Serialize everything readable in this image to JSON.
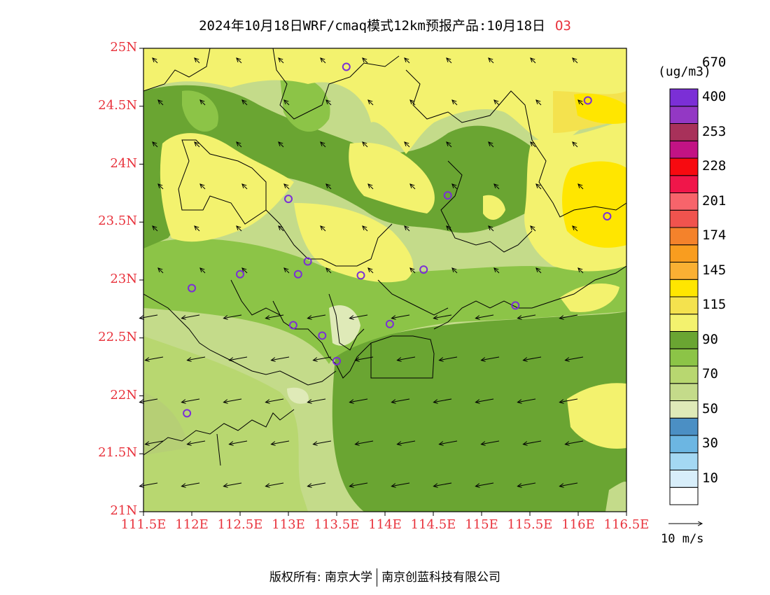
{
  "header": {
    "title": "2024年10月18日WRF/cmaq模式12km预报产品:10月18日",
    "species": "O3"
  },
  "axes": {
    "lat_labels": [
      "25N",
      "24.5N",
      "24N",
      "23.5N",
      "23N",
      "22.5N",
      "22N",
      "21.5N",
      "21N"
    ],
    "lon_labels": [
      "111.5E",
      "112E",
      "112.5E",
      "113E",
      "113.5E",
      "114E",
      "114.5E",
      "115E",
      "115.5E",
      "116E",
      "116.5E"
    ],
    "lat_range": [
      21,
      25
    ],
    "lon_range": [
      111.5,
      116.5
    ]
  },
  "colorbar": {
    "unit": "(ug/m3)",
    "colors": [
      "#ffffff",
      "#d8eefa",
      "#a4d8f3",
      "#6cb6e2",
      "#4b8fc4",
      "#dfeab8",
      "#c4db8a",
      "#b8d770",
      "#8cc447",
      "#6aa532",
      "#f3f26e",
      "#f4e24e",
      "#ffe600",
      "#fab033",
      "#f99d1f",
      "#f4822b",
      "#f0534e",
      "#f7646b",
      "#f0164a",
      "#f70a10",
      "#c21384",
      "#a8315a",
      "#9338c4",
      "#7b2fd6"
    ],
    "labels": [
      "10",
      "30",
      "50",
      "70",
      "90",
      "115",
      "145",
      "174",
      "201",
      "228",
      "253",
      "400",
      "670"
    ]
  },
  "wind": {
    "reference_label": "10 m/s"
  },
  "stations": [
    {
      "lon": 113.6,
      "lat": 24.84
    },
    {
      "lon": 116.1,
      "lat": 24.55
    },
    {
      "lon": 113.0,
      "lat": 23.7
    },
    {
      "lon": 114.65,
      "lat": 23.73
    },
    {
      "lon": 116.3,
      "lat": 23.55
    },
    {
      "lon": 113.2,
      "lat": 23.16
    },
    {
      "lon": 112.5,
      "lat": 23.05
    },
    {
      "lon": 113.1,
      "lat": 23.05
    },
    {
      "lon": 113.75,
      "lat": 23.04
    },
    {
      "lon": 114.4,
      "lat": 23.09
    },
    {
      "lon": 112.0,
      "lat": 22.93
    },
    {
      "lon": 115.35,
      "lat": 22.78
    },
    {
      "lon": 113.05,
      "lat": 22.61
    },
    {
      "lon": 114.05,
      "lat": 22.62
    },
    {
      "lon": 113.35,
      "lat": 22.52
    },
    {
      "lon": 113.5,
      "lat": 22.3
    },
    {
      "lon": 111.95,
      "lat": 21.85
    }
  ],
  "footer": {
    "left": "版权所有: 南京大学",
    "right": "南京创蓝科技有限公司"
  }
}
